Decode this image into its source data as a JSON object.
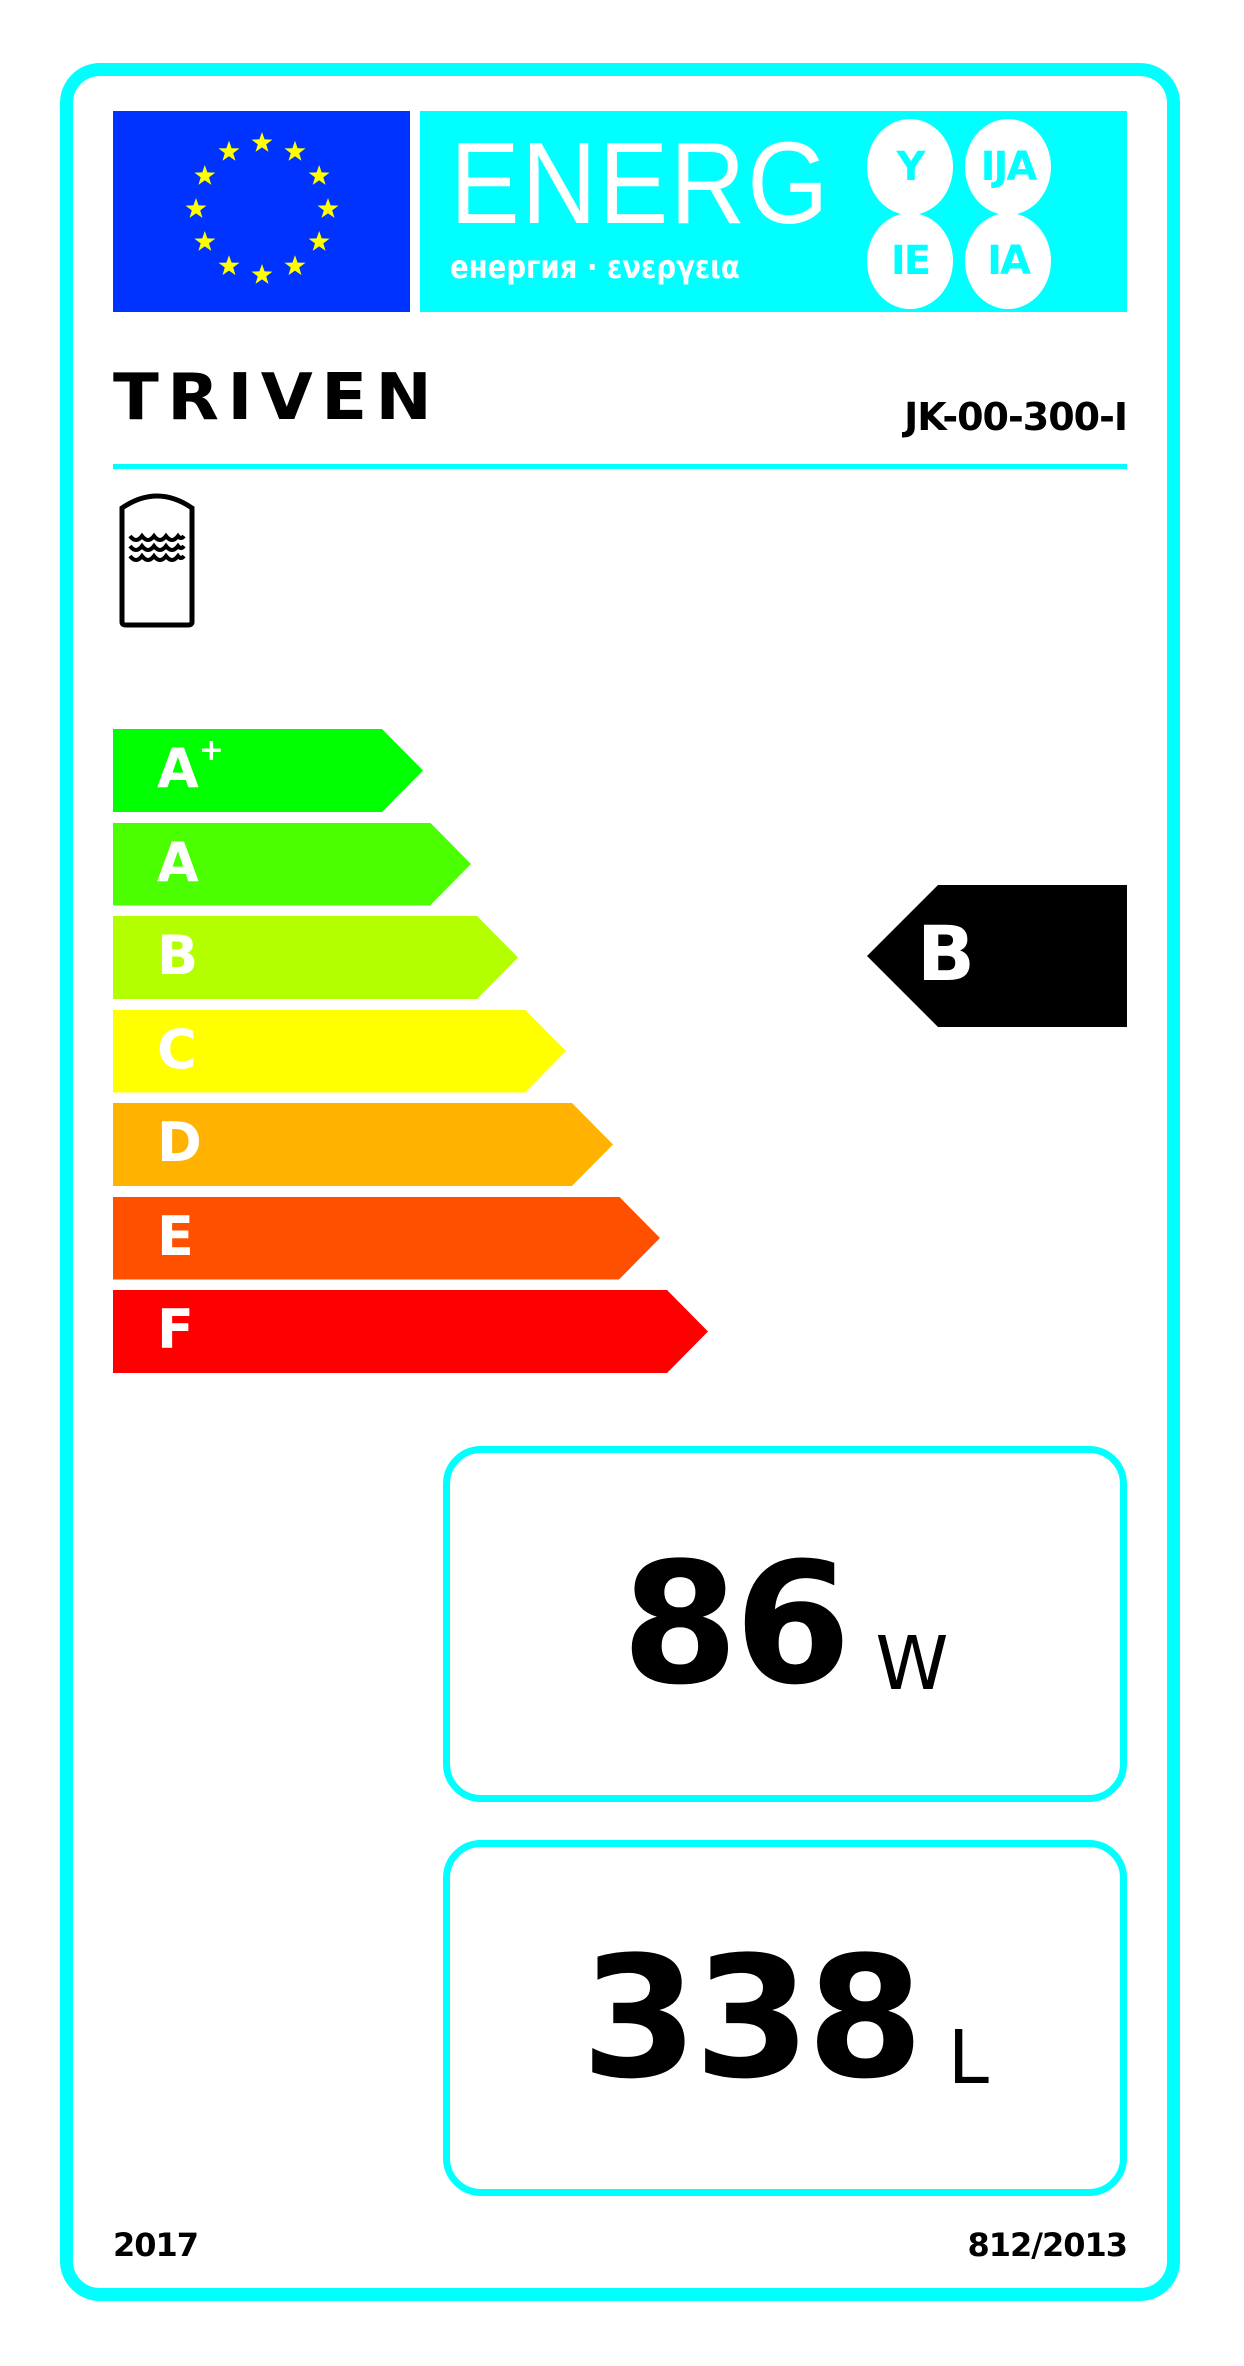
{
  "header": {
    "energy_word": "ENERG",
    "energy_subtitle": "енергия · ενεργεια",
    "energy_suffixes": [
      "Y",
      "IJA",
      "IE",
      "IA"
    ],
    "flag_icon": "eu-flag-icon"
  },
  "supplier": {
    "brand": "TRIVEN",
    "model": "JK-00-300-I"
  },
  "product_icon": "water-tank-icon",
  "scale": {
    "classes": [
      {
        "label": "A",
        "sup": "+",
        "color": "#00ff00"
      },
      {
        "label": "A",
        "sup": "",
        "color": "#4cff00"
      },
      {
        "label": "B",
        "sup": "",
        "color": "#b3ff00"
      },
      {
        "label": "C",
        "sup": "",
        "color": "#ffff00"
      },
      {
        "label": "D",
        "sup": "",
        "color": "#ffb300"
      },
      {
        "label": "E",
        "sup": "",
        "color": "#ff5000"
      },
      {
        "label": "F",
        "sup": "",
        "color": "#ff0000"
      }
    ],
    "rating": "B"
  },
  "standing_loss": {
    "value": "86",
    "unit": "W"
  },
  "volume": {
    "value": "338",
    "unit": "L"
  },
  "footer": {
    "year": "2017",
    "regulation": "812/2013"
  },
  "colors": {
    "frame": "#00ffff",
    "flag": "#0033ff",
    "star": "#ffff00"
  }
}
